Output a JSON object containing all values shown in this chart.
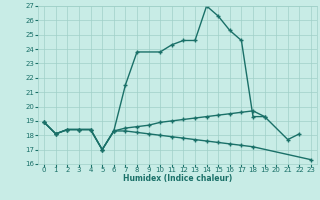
{
  "xlabel": "Humidex (Indice chaleur)",
  "xlim": [
    -0.5,
    23.5
  ],
  "ylim": [
    16,
    27
  ],
  "yticks": [
    16,
    17,
    18,
    19,
    20,
    21,
    22,
    23,
    24,
    25,
    26,
    27
  ],
  "xticks": [
    0,
    1,
    2,
    3,
    4,
    5,
    6,
    7,
    8,
    9,
    10,
    11,
    12,
    13,
    14,
    15,
    16,
    17,
    18,
    19,
    20,
    21,
    22,
    23
  ],
  "bg_color": "#c8ece6",
  "grid_color": "#a0d0c8",
  "line_color": "#1a7068",
  "line1_x": [
    0,
    1,
    2,
    3,
    4,
    5,
    6,
    7,
    8,
    10,
    11,
    12,
    13,
    14,
    15,
    16,
    17,
    18,
    19,
    21,
    22
  ],
  "line1_y": [
    18.9,
    18.1,
    18.4,
    18.4,
    18.4,
    17.0,
    18.3,
    21.5,
    23.8,
    23.8,
    24.3,
    24.6,
    24.6,
    27.0,
    26.3,
    25.3,
    24.6,
    19.3,
    19.3,
    17.7,
    18.1
  ],
  "line2_x": [
    0,
    1,
    2,
    3,
    4,
    5,
    6,
    7,
    8,
    9,
    10,
    11,
    12,
    13,
    14,
    15,
    16,
    17,
    18,
    19
  ],
  "line2_y": [
    18.9,
    18.1,
    18.4,
    18.4,
    18.4,
    17.0,
    18.3,
    18.5,
    18.6,
    18.7,
    18.9,
    19.0,
    19.1,
    19.2,
    19.3,
    19.4,
    19.5,
    19.6,
    19.7,
    19.3
  ],
  "line3_x": [
    0,
    1,
    2,
    3,
    4,
    5,
    6,
    7,
    8,
    9,
    10,
    11,
    12,
    13,
    14,
    15,
    16,
    17,
    18,
    23
  ],
  "line3_y": [
    18.9,
    18.1,
    18.4,
    18.4,
    18.4,
    17.0,
    18.3,
    18.3,
    18.2,
    18.1,
    18.0,
    17.9,
    17.8,
    17.7,
    17.6,
    17.5,
    17.4,
    17.3,
    17.2,
    16.3
  ]
}
